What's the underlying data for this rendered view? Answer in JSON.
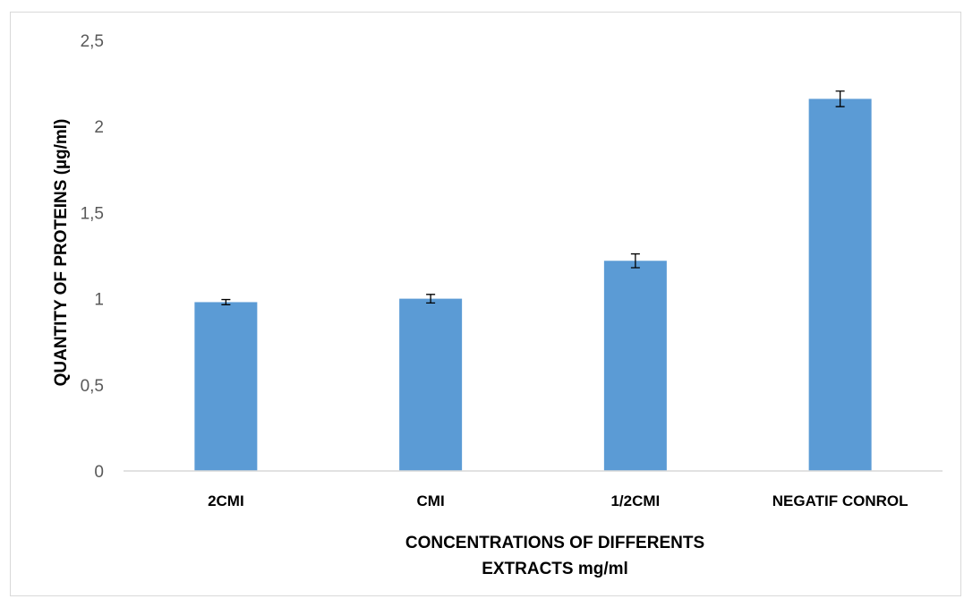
{
  "chart_data": {
    "type": "bar",
    "title": "",
    "xlabel_lines": [
      "CONCENTRATIONS OF DIFFERENTS",
      "EXTRACTS mg/ml"
    ],
    "ylabel": "QUANTITY OF PROTEINS  (µg/ml)",
    "categories": [
      "2CMI",
      "CMI",
      "1/2CMI",
      "NEGATIF CONROL"
    ],
    "values": [
      0.98,
      1.0,
      1.22,
      2.16
    ],
    "errors": [
      0.015,
      0.025,
      0.04,
      0.045
    ],
    "ylim": [
      0,
      2.5
    ],
    "yticks": [
      0,
      0.5,
      1,
      1.5,
      2,
      2.5
    ],
    "ytick_labels": [
      "0",
      "0,5",
      "1",
      "1,5",
      "2",
      "2,5"
    ],
    "grid": false,
    "legend": "none",
    "colors": {
      "bar": "#5b9bd5",
      "axis": "#d9d9d9",
      "frame": "#d9d9d9"
    }
  }
}
